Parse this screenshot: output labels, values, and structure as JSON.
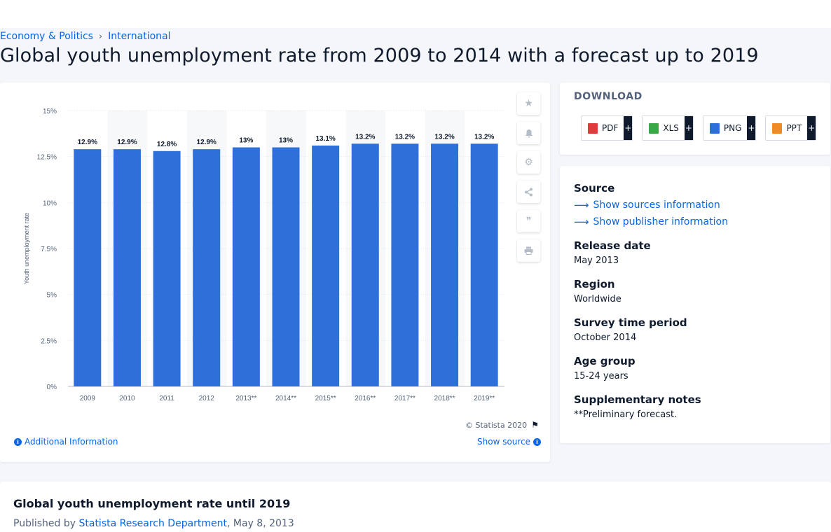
{
  "breadcrumb": {
    "items": [
      "Economy & Politics",
      "International"
    ],
    "separator": "›"
  },
  "page_title": "Global youth unemployment rate from 2009 to 2014 with a forecast up to 2019",
  "chart_data": {
    "type": "bar",
    "categories": [
      "2009",
      "2010",
      "2011",
      "2012",
      "2013**",
      "2014**",
      "2015**",
      "2016**",
      "2017**",
      "2018**",
      "2019**"
    ],
    "values": [
      12.9,
      12.9,
      12.8,
      12.9,
      13,
      13,
      13.1,
      13.2,
      13.2,
      13.2,
      13.2
    ],
    "value_labels": [
      "12.9%",
      "12.9%",
      "12.8%",
      "12.9%",
      "13%",
      "13%",
      "13.1%",
      "13.2%",
      "13.2%",
      "13.2%",
      "13.2%"
    ],
    "title": "",
    "xlabel": "",
    "ylabel": "Youth unemployment rate",
    "ylim": [
      0,
      15
    ],
    "yticks": [
      0,
      2.5,
      5,
      7.5,
      10,
      12.5,
      15
    ],
    "ytick_labels": [
      "0%",
      "2.5%",
      "5%",
      "7.5%",
      "10%",
      "12.5%",
      "15%"
    ],
    "bar_color": "#2f6fd9",
    "grid": true
  },
  "chart_footer": {
    "copyright": "© Statista 2020",
    "additional_info": "Additional Information",
    "show_source": "Show source"
  },
  "tools": [
    "star-icon",
    "bell-icon",
    "gear-icon",
    "share-icon",
    "quote-icon",
    "print-icon"
  ],
  "download": {
    "title": "DOWNLOAD",
    "buttons": [
      {
        "label": "PDF",
        "icon": "pdf-file-icon",
        "color": "#e03b3b"
      },
      {
        "label": "XLS",
        "icon": "xls-file-icon",
        "color": "#3aa845"
      },
      {
        "label": "PNG",
        "icon": "png-file-icon",
        "color": "#2f6fd9"
      },
      {
        "label": "PPT",
        "icon": "ppt-file-icon",
        "color": "#f08a24"
      }
    ],
    "plus": "+"
  },
  "meta": {
    "source_label": "Source",
    "show_sources": "Show sources information",
    "show_publisher": "Show publisher information",
    "release_date_label": "Release date",
    "release_date": "May 2013",
    "region_label": "Region",
    "region": "Worldwide",
    "survey_period_label": "Survey time period",
    "survey_period": "October 2014",
    "age_group_label": "Age group",
    "age_group": "15-24 years",
    "notes_label": "Supplementary notes",
    "notes": "**Preliminary forecast."
  },
  "publication": {
    "title": "Global youth unemployment rate until 2019",
    "published_by": "Published by",
    "publisher": "Statista Research Department",
    "date": ", May 8, 2013"
  },
  "colors": {
    "accent": "#0666e5",
    "text": "#0f1b2d"
  }
}
